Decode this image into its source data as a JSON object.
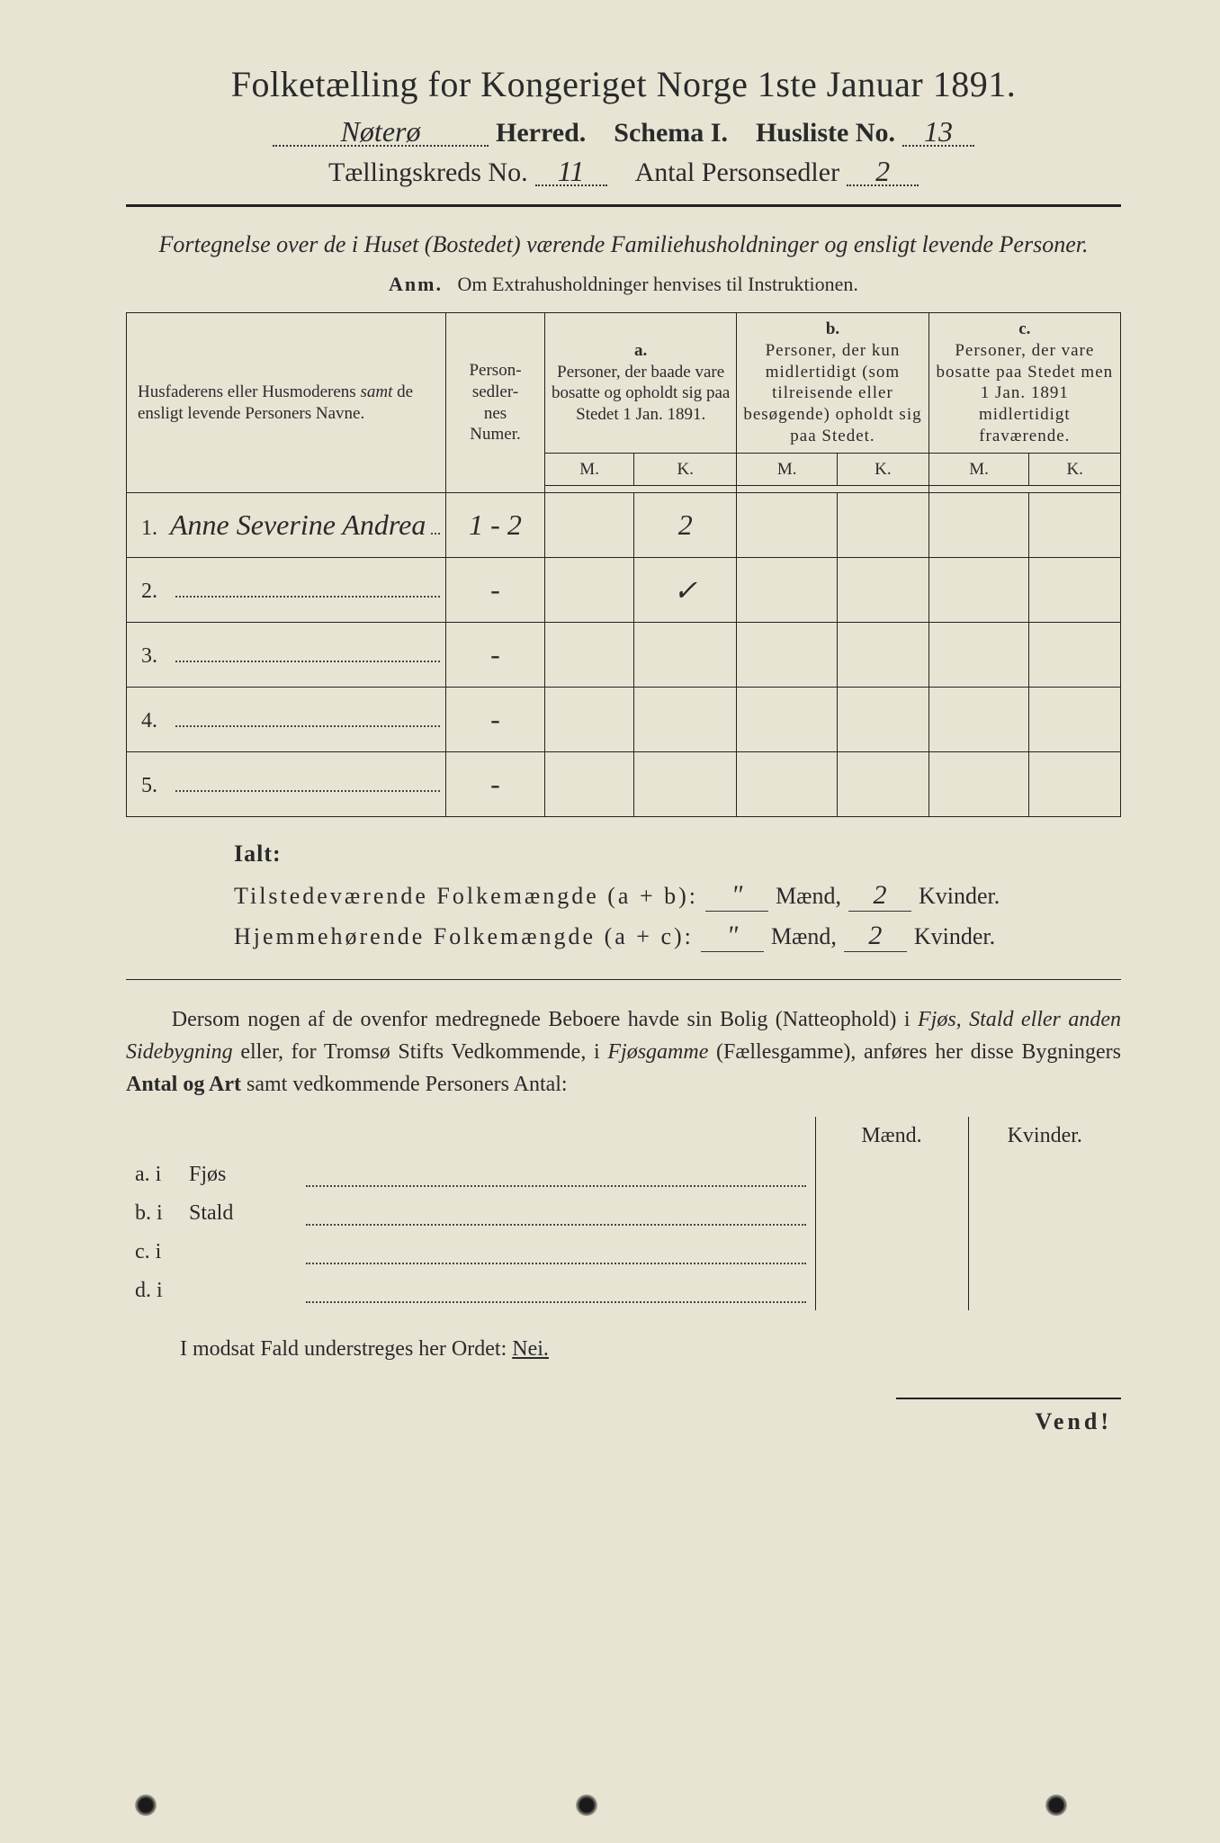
{
  "header": {
    "title": "Folketælling for Kongeriget Norge 1ste Januar 1891.",
    "herred_value": "Nøterø",
    "herred_label": "Herred.",
    "schema_label": "Schema I.",
    "husliste_label": "Husliste No.",
    "husliste_value": "13",
    "kreds_label": "Tællingskreds No.",
    "kreds_value": "11",
    "antal_label": "Antal Personsedler",
    "antal_value": "2"
  },
  "subtitle": "Fortegnelse over de i Huset (Bostedet) værende Familiehusholdninger og ensligt levende Personer.",
  "anm_label": "Anm.",
  "anm_text": "Om Extrahusholdninger henvises til Instruktionen.",
  "table": {
    "col_names": "Husfaderens eller Husmoderens samt de ensligt levende Personers Navne.",
    "col_num": "Person-\nsedler-\nnes\nNumer.",
    "col_a_head": "a.",
    "col_a": "Personer, der baade vare bosatte og opholdt sig paa Stedet 1 Jan. 1891.",
    "col_b_head": "b.",
    "col_b": "Personer, der kun midlertidigt (som tilreisende eller besøgende) opholdt sig paa Stedet.",
    "col_c_head": "c.",
    "col_c": "Personer, der vare bosatte paa Stedet men 1 Jan. 1891 midlertidigt fraværende.",
    "m": "M.",
    "k": "K.",
    "rows": [
      {
        "n": "1.",
        "name": "Anne Severine Andrea",
        "num": "1 - 2",
        "a_m": "",
        "a_k": "2",
        "b_m": "",
        "b_k": "",
        "c_m": "",
        "c_k": ""
      },
      {
        "n": "2.",
        "name": "",
        "num": "-",
        "a_m": "",
        "a_k": "✓",
        "b_m": "",
        "b_k": "",
        "c_m": "",
        "c_k": ""
      },
      {
        "n": "3.",
        "name": "",
        "num": "-",
        "a_m": "",
        "a_k": "",
        "b_m": "",
        "b_k": "",
        "c_m": "",
        "c_k": ""
      },
      {
        "n": "4.",
        "name": "",
        "num": "-",
        "a_m": "",
        "a_k": "",
        "b_m": "",
        "b_k": "",
        "c_m": "",
        "c_k": ""
      },
      {
        "n": "5.",
        "name": "",
        "num": "-",
        "a_m": "",
        "a_k": "",
        "b_m": "",
        "b_k": "",
        "c_m": "",
        "c_k": ""
      }
    ]
  },
  "totals": {
    "ialt": "Ialt:",
    "line1_label": "Tilstedeværende Folkemængde (a + b):",
    "line2_label": "Hjemmehørende Folkemængde (a + c):",
    "maend": "Mænd,",
    "kvinder": "Kvinder.",
    "line1_m": "\"",
    "line1_k": "2",
    "line2_m": "\"",
    "line2_k": "2"
  },
  "para": {
    "text1": "Dersom nogen af de ovenfor medregnede Beboere havde sin Bolig (Natteophold) i ",
    "ital1": "Fjøs, Stald eller anden Sidebygning",
    "text2": " eller, for Tromsø Stifts Vedkommende, i ",
    "ital2": "Fjøsgamme",
    "text3": " (Fællesgamme), anføres her disse Bygningers ",
    "bold1": "Antal og Art",
    "text4": " samt vedkommende Personers Antal:"
  },
  "build": {
    "maend": "Mænd.",
    "kvinder": "Kvinder.",
    "rows": [
      {
        "l": "a.  i",
        "k": "Fjøs"
      },
      {
        "l": "b.  i",
        "k": "Stald"
      },
      {
        "l": "c.  i",
        "k": ""
      },
      {
        "l": "d.  i",
        "k": ""
      }
    ]
  },
  "modsat": "I modsat Fald understreges her Ordet: ",
  "nei": "Nei.",
  "vend": "Vend!",
  "colors": {
    "paper": "#e8e4d4",
    "ink": "#2a2a2a"
  }
}
